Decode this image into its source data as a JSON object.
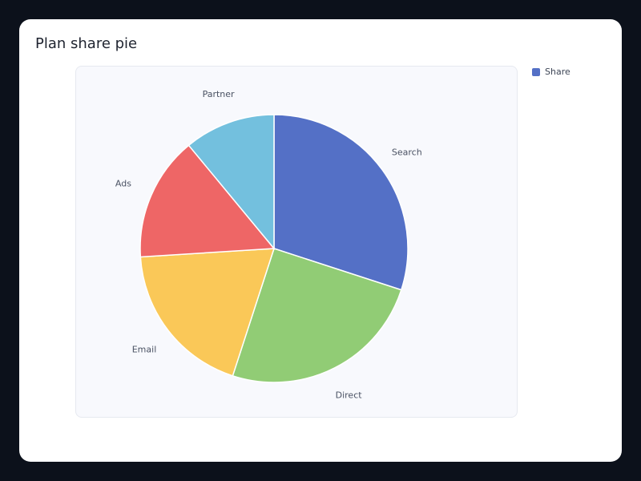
{
  "card": {
    "title": "Plan share pie"
  },
  "legend": {
    "label": "Share",
    "color": "#5470c6"
  },
  "chart_data": {
    "type": "pie",
    "title": "Plan share pie",
    "legend": {
      "entries": [
        "Share"
      ],
      "placement": "top-right"
    },
    "categories": [
      "Search",
      "Direct",
      "Email",
      "Ads",
      "Partner"
    ],
    "values": [
      30,
      25,
      19,
      15,
      11
    ],
    "colors": [
      "#5470c6",
      "#91cc75",
      "#fac858",
      "#ee6666",
      "#73c0de"
    ]
  }
}
